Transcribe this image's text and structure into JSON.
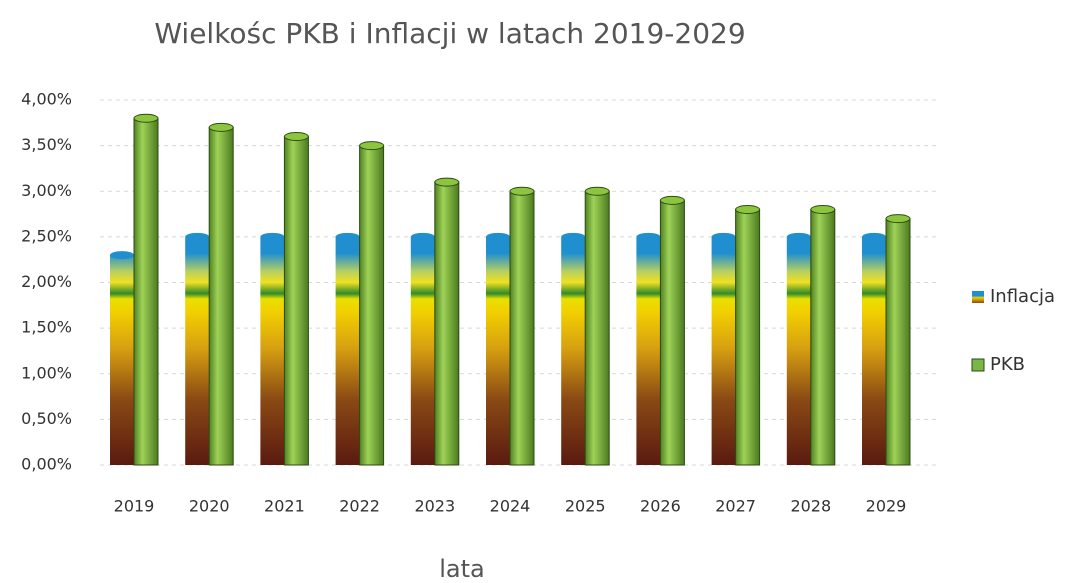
{
  "chart_data": {
    "type": "bar",
    "title": "Wielkośc PKB i Inflacji w latach 2019-2029",
    "xlabel": "lata",
    "categories": [
      "2019",
      "2020",
      "2021",
      "2022",
      "2023",
      "2024",
      "2025",
      "2026",
      "2027",
      "2028",
      "2029"
    ],
    "series": [
      {
        "name": "Inflacja",
        "color": "#1f8fd0",
        "values": [
          2.3,
          2.5,
          2.5,
          2.5,
          2.5,
          2.5,
          2.5,
          2.5,
          2.5,
          2.5,
          2.5
        ]
      },
      {
        "name": "PKB",
        "color": "#7ab648",
        "values": [
          3.8,
          3.7,
          3.6,
          3.5,
          3.1,
          3.0,
          3.0,
          2.9,
          2.8,
          2.8,
          2.7
        ]
      }
    ],
    "ylim": [
      0,
      4
    ],
    "yticks": [
      {
        "value": 0,
        "label": "0,00%"
      },
      {
        "value": 0.5,
        "label": "0,50%"
      },
      {
        "value": 1,
        "label": "1,00%"
      },
      {
        "value": 1.5,
        "label": "1,50%"
      },
      {
        "value": 2,
        "label": "2,00%"
      },
      {
        "value": 2.5,
        "label": "2,50%"
      },
      {
        "value": 3,
        "label": "3,00%"
      },
      {
        "value": 3.5,
        "label": "3,50%"
      },
      {
        "value": 4,
        "label": "4,00%"
      }
    ],
    "grid": true,
    "legend": "right"
  }
}
